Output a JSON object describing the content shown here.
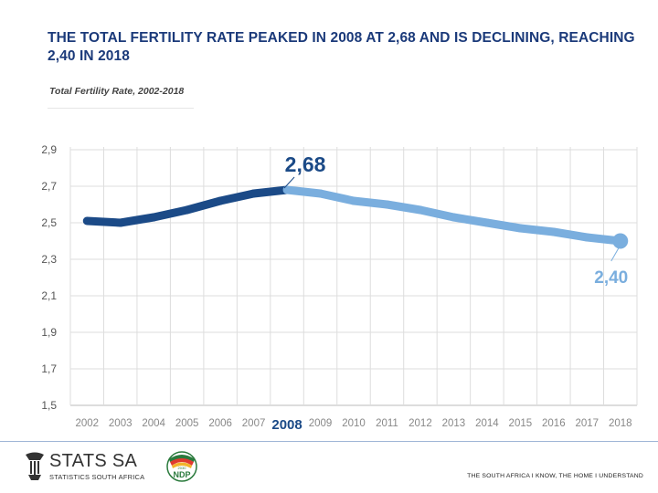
{
  "header": {
    "title": "THE TOTAL FERTILITY RATE PEAKED IN 2008 AT 2,68 AND IS DECLINING, REACHING 2,40 IN 2018",
    "subtitle": "Total Fertility Rate, 2002-2018"
  },
  "chart_data": {
    "type": "line",
    "x": [
      "2002",
      "2003",
      "2004",
      "2005",
      "2006",
      "2007",
      "2008",
      "2009",
      "2010",
      "2011",
      "2012",
      "2013",
      "2014",
      "2015",
      "2016",
      "2017",
      "2018"
    ],
    "series": [
      {
        "values": [
          2.51,
          2.5,
          2.53,
          2.57,
          2.62,
          2.66,
          2.68,
          2.66,
          2.62,
          2.6,
          2.57,
          2.53,
          2.5,
          2.47,
          2.45,
          2.42,
          2.4
        ]
      }
    ],
    "y_ticks": [
      "1,5",
      "1,7",
      "1,9",
      "2,1",
      "2,3",
      "2,5",
      "2,7",
      "2,9"
    ],
    "ylim": [
      1.5,
      2.9
    ],
    "grid": true,
    "highlight_x": "2008",
    "annotations": [
      {
        "label": "2,68",
        "x": "2008",
        "y": 2.68,
        "color": "#1b4a87"
      },
      {
        "label": "2,40",
        "x": "2018",
        "y": 2.4,
        "color": "#7aaede"
      }
    ],
    "colors": {
      "peak_segment": "#1b4a87",
      "decline_segment": "#7aaede",
      "grid": "#dddddd"
    }
  },
  "footer": {
    "logo_text": "STATS SA",
    "logo_sub": "STATISTICS SOUTH AFRICA",
    "ndp_label": "NDP",
    "ndp_year": "2030",
    "tagline": "THE SOUTH AFRICA I KNOW, THE HOME I UNDERSTAND"
  }
}
